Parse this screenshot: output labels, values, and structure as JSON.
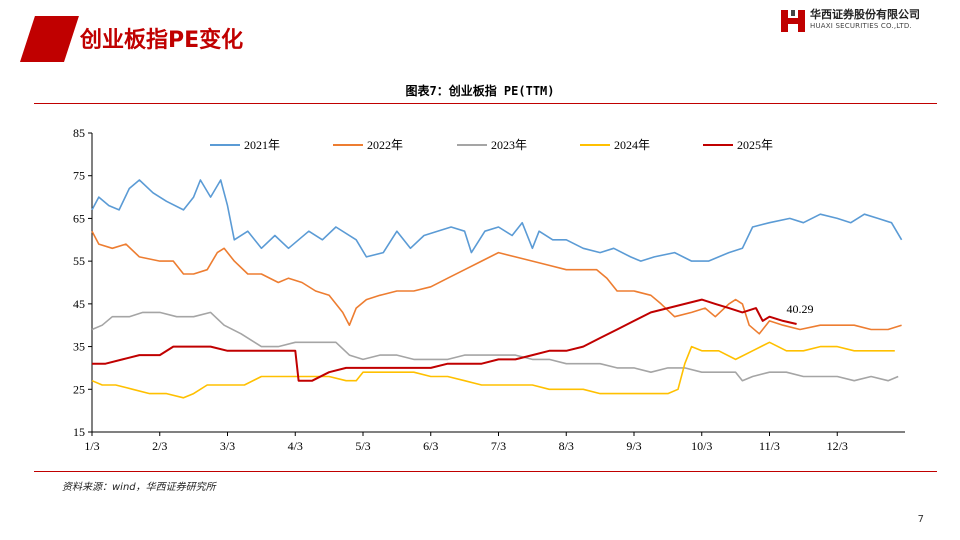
{
  "header": {
    "title": "创业板指PE变化",
    "logo_cn": "华西证券股份有限公司",
    "logo_en": "HUAXI SECURITIES CO.,LTD."
  },
  "figure_title": "图表7：创业板指 PE(TTM)",
  "source": "资料来源：wind，华西证券研究所",
  "page_number": "7",
  "colors": {
    "brand": "#c00000",
    "s2021": "#5b9bd5",
    "s2022": "#ed7d31",
    "s2023": "#a5a5a5",
    "s2024": "#ffc000",
    "s2025": "#c00000"
  },
  "chart_data": {
    "type": "line",
    "ylim": [
      15,
      85
    ],
    "yticks": [
      15,
      25,
      35,
      45,
      55,
      65,
      75,
      85
    ],
    "xlim": [
      1,
      13
    ],
    "x_ticks": [
      {
        "label": "1/3",
        "x": 1
      },
      {
        "label": "2/3",
        "x": 2
      },
      {
        "label": "3/3",
        "x": 3
      },
      {
        "label": "4/3",
        "x": 4
      },
      {
        "label": "5/3",
        "x": 5
      },
      {
        "label": "6/3",
        "x": 6
      },
      {
        "label": "7/3",
        "x": 7
      },
      {
        "label": "8/3",
        "x": 8
      },
      {
        "label": "9/3",
        "x": 9
      },
      {
        "label": "10/3",
        "x": 10
      },
      {
        "label": "11/3",
        "x": 11
      },
      {
        "label": "12/3",
        "x": 12
      }
    ],
    "x_unit": "month index (1 = 1/3)",
    "legend_position": "top",
    "annotation": {
      "text": "40.29",
      "x": 11.45,
      "y": 40.29
    },
    "series": [
      {
        "name": "2021年",
        "color_key": "s2021",
        "points": [
          [
            1,
            67
          ],
          [
            1.1,
            70
          ],
          [
            1.25,
            68
          ],
          [
            1.4,
            67
          ],
          [
            1.55,
            72
          ],
          [
            1.7,
            74
          ],
          [
            1.9,
            71
          ],
          [
            2.1,
            69
          ],
          [
            2.35,
            67
          ],
          [
            2.5,
            70
          ],
          [
            2.6,
            74
          ],
          [
            2.75,
            70
          ],
          [
            2.9,
            74
          ],
          [
            3,
            68
          ],
          [
            3.1,
            60
          ],
          [
            3.3,
            62
          ],
          [
            3.5,
            58
          ],
          [
            3.7,
            61
          ],
          [
            3.9,
            58
          ],
          [
            4.2,
            62
          ],
          [
            4.4,
            60
          ],
          [
            4.6,
            63
          ],
          [
            4.9,
            60
          ],
          [
            5.05,
            56
          ],
          [
            5.3,
            57
          ],
          [
            5.5,
            62
          ],
          [
            5.7,
            58
          ],
          [
            5.9,
            61
          ],
          [
            6.1,
            62
          ],
          [
            6.3,
            63
          ],
          [
            6.5,
            62
          ],
          [
            6.6,
            57
          ],
          [
            6.8,
            62
          ],
          [
            7,
            63
          ],
          [
            7.2,
            61
          ],
          [
            7.35,
            64
          ],
          [
            7.5,
            58
          ],
          [
            7.6,
            62
          ],
          [
            7.8,
            60
          ],
          [
            8,
            60
          ],
          [
            8.25,
            58
          ],
          [
            8.5,
            57
          ],
          [
            8.7,
            58
          ],
          [
            8.95,
            56
          ],
          [
            9.1,
            55
          ],
          [
            9.3,
            56
          ],
          [
            9.6,
            57
          ],
          [
            9.85,
            55
          ],
          [
            10.1,
            55
          ],
          [
            10.4,
            57
          ],
          [
            10.6,
            58
          ],
          [
            10.75,
            63
          ],
          [
            11,
            64
          ],
          [
            11.3,
            65
          ],
          [
            11.5,
            64
          ],
          [
            11.75,
            66
          ],
          [
            12,
            65
          ],
          [
            12.2,
            64
          ],
          [
            12.4,
            66
          ],
          [
            12.6,
            65
          ],
          [
            12.8,
            64
          ],
          [
            12.95,
            60
          ]
        ]
      },
      {
        "name": "2022年",
        "color_key": "s2022",
        "points": [
          [
            1,
            62
          ],
          [
            1.1,
            59
          ],
          [
            1.3,
            58
          ],
          [
            1.5,
            59
          ],
          [
            1.7,
            56
          ],
          [
            2,
            55
          ],
          [
            2.2,
            55
          ],
          [
            2.35,
            52
          ],
          [
            2.5,
            52
          ],
          [
            2.7,
            53
          ],
          [
            2.85,
            57
          ],
          [
            2.95,
            58
          ],
          [
            3.1,
            55
          ],
          [
            3.3,
            52
          ],
          [
            3.5,
            52
          ],
          [
            3.75,
            50
          ],
          [
            3.9,
            51
          ],
          [
            4.1,
            50
          ],
          [
            4.3,
            48
          ],
          [
            4.5,
            47
          ],
          [
            4.7,
            43
          ],
          [
            4.8,
            40
          ],
          [
            4.9,
            44
          ],
          [
            5.05,
            46
          ],
          [
            5.25,
            47
          ],
          [
            5.5,
            48
          ],
          [
            5.75,
            48
          ],
          [
            6,
            49
          ],
          [
            6.25,
            51
          ],
          [
            6.5,
            53
          ],
          [
            6.75,
            55
          ],
          [
            7,
            57
          ],
          [
            7.25,
            56
          ],
          [
            7.5,
            55
          ],
          [
            7.75,
            54
          ],
          [
            8,
            53
          ],
          [
            8.25,
            53
          ],
          [
            8.45,
            53
          ],
          [
            8.6,
            51
          ],
          [
            8.75,
            48
          ],
          [
            9,
            48
          ],
          [
            9.25,
            47
          ],
          [
            9.4,
            45
          ],
          [
            9.6,
            42
          ],
          [
            9.85,
            43
          ],
          [
            10.05,
            44
          ],
          [
            10.2,
            42
          ],
          [
            10.4,
            45
          ],
          [
            10.5,
            46
          ],
          [
            10.6,
            45
          ],
          [
            10.7,
            40
          ],
          [
            10.85,
            38
          ],
          [
            11,
            41
          ],
          [
            11.2,
            40
          ],
          [
            11.45,
            39
          ],
          [
            11.75,
            40
          ],
          [
            12,
            40
          ],
          [
            12.25,
            40
          ],
          [
            12.5,
            39
          ],
          [
            12.75,
            39
          ],
          [
            12.95,
            40
          ]
        ]
      },
      {
        "name": "2023年",
        "color_key": "s2023",
        "points": [
          [
            1,
            39
          ],
          [
            1.15,
            40
          ],
          [
            1.3,
            42
          ],
          [
            1.55,
            42
          ],
          [
            1.75,
            43
          ],
          [
            2,
            43
          ],
          [
            2.25,
            42
          ],
          [
            2.5,
            42
          ],
          [
            2.75,
            43
          ],
          [
            2.95,
            40
          ],
          [
            3.2,
            38
          ],
          [
            3.5,
            35
          ],
          [
            3.75,
            35
          ],
          [
            4,
            36
          ],
          [
            4.3,
            36
          ],
          [
            4.6,
            36
          ],
          [
            4.8,
            33
          ],
          [
            5,
            32
          ],
          [
            5.25,
            33
          ],
          [
            5.5,
            33
          ],
          [
            5.75,
            32
          ],
          [
            6,
            32
          ],
          [
            6.25,
            32
          ],
          [
            6.5,
            33
          ],
          [
            6.75,
            33
          ],
          [
            7,
            33
          ],
          [
            7.25,
            33
          ],
          [
            7.5,
            32
          ],
          [
            7.75,
            32
          ],
          [
            8,
            31
          ],
          [
            8.25,
            31
          ],
          [
            8.5,
            31
          ],
          [
            8.75,
            30
          ],
          [
            9,
            30
          ],
          [
            9.25,
            29
          ],
          [
            9.5,
            30
          ],
          [
            9.75,
            30
          ],
          [
            10,
            29
          ],
          [
            10.25,
            29
          ],
          [
            10.5,
            29
          ],
          [
            10.6,
            27
          ],
          [
            10.75,
            28
          ],
          [
            11,
            29
          ],
          [
            11.25,
            29
          ],
          [
            11.5,
            28
          ],
          [
            11.75,
            28
          ],
          [
            12,
            28
          ],
          [
            12.25,
            27
          ],
          [
            12.5,
            28
          ],
          [
            12.75,
            27
          ],
          [
            12.9,
            28
          ]
        ]
      },
      {
        "name": "2024年",
        "color_key": "s2024",
        "points": [
          [
            1,
            27
          ],
          [
            1.15,
            26
          ],
          [
            1.35,
            26
          ],
          [
            1.6,
            25
          ],
          [
            1.85,
            24
          ],
          [
            2.1,
            24
          ],
          [
            2.35,
            23
          ],
          [
            2.5,
            24
          ],
          [
            2.7,
            26
          ],
          [
            3,
            26
          ],
          [
            3.25,
            26
          ],
          [
            3.5,
            28
          ],
          [
            3.75,
            28
          ],
          [
            4,
            28
          ],
          [
            4.25,
            28
          ],
          [
            4.5,
            28
          ],
          [
            4.75,
            27
          ],
          [
            4.9,
            27
          ],
          [
            5,
            29
          ],
          [
            5.25,
            29
          ],
          [
            5.5,
            29
          ],
          [
            5.75,
            29
          ],
          [
            6,
            28
          ],
          [
            6.25,
            28
          ],
          [
            6.5,
            27
          ],
          [
            6.75,
            26
          ],
          [
            7,
            26
          ],
          [
            7.25,
            26
          ],
          [
            7.5,
            26
          ],
          [
            7.75,
            25
          ],
          [
            8,
            25
          ],
          [
            8.25,
            25
          ],
          [
            8.5,
            24
          ],
          [
            8.75,
            24
          ],
          [
            9,
            24
          ],
          [
            9.25,
            24
          ],
          [
            9.5,
            24
          ],
          [
            9.65,
            25
          ],
          [
            9.75,
            31
          ],
          [
            9.85,
            35
          ],
          [
            10,
            34
          ],
          [
            10.25,
            34
          ],
          [
            10.5,
            32
          ],
          [
            10.75,
            34
          ],
          [
            11,
            36
          ],
          [
            11.25,
            34
          ],
          [
            11.5,
            34
          ],
          [
            11.75,
            35
          ],
          [
            12,
            35
          ],
          [
            12.25,
            34
          ],
          [
            12.5,
            34
          ],
          [
            12.75,
            34
          ],
          [
            12.85,
            34
          ]
        ]
      },
      {
        "name": "2025年",
        "color_key": "s2025",
        "points": [
          [
            1,
            31
          ],
          [
            1.2,
            31
          ],
          [
            1.45,
            32
          ],
          [
            1.7,
            33
          ],
          [
            2,
            33
          ],
          [
            2.2,
            35
          ],
          [
            2.5,
            35
          ],
          [
            2.75,
            35
          ],
          [
            3,
            34
          ],
          [
            3.25,
            34
          ],
          [
            3.5,
            34
          ],
          [
            3.75,
            34
          ],
          [
            4,
            34
          ],
          [
            4.05,
            27
          ],
          [
            4.25,
            27
          ],
          [
            4.5,
            29
          ],
          [
            4.75,
            30
          ],
          [
            5,
            30
          ],
          [
            5.25,
            30
          ],
          [
            5.5,
            30
          ],
          [
            5.75,
            30
          ],
          [
            6,
            30
          ],
          [
            6.25,
            31
          ],
          [
            6.5,
            31
          ],
          [
            6.75,
            31
          ],
          [
            7,
            32
          ],
          [
            7.25,
            32
          ],
          [
            7.5,
            33
          ],
          [
            7.75,
            34
          ],
          [
            8,
            34
          ],
          [
            8.25,
            35
          ],
          [
            8.5,
            37
          ],
          [
            8.75,
            39
          ],
          [
            9,
            41
          ],
          [
            9.25,
            43
          ],
          [
            9.5,
            44
          ],
          [
            9.75,
            45
          ],
          [
            10,
            46
          ],
          [
            10.2,
            45
          ],
          [
            10.4,
            44
          ],
          [
            10.6,
            43
          ],
          [
            10.8,
            44
          ],
          [
            10.9,
            41
          ],
          [
            11,
            42
          ],
          [
            11.2,
            41
          ],
          [
            11.4,
            40.29
          ]
        ]
      }
    ]
  }
}
